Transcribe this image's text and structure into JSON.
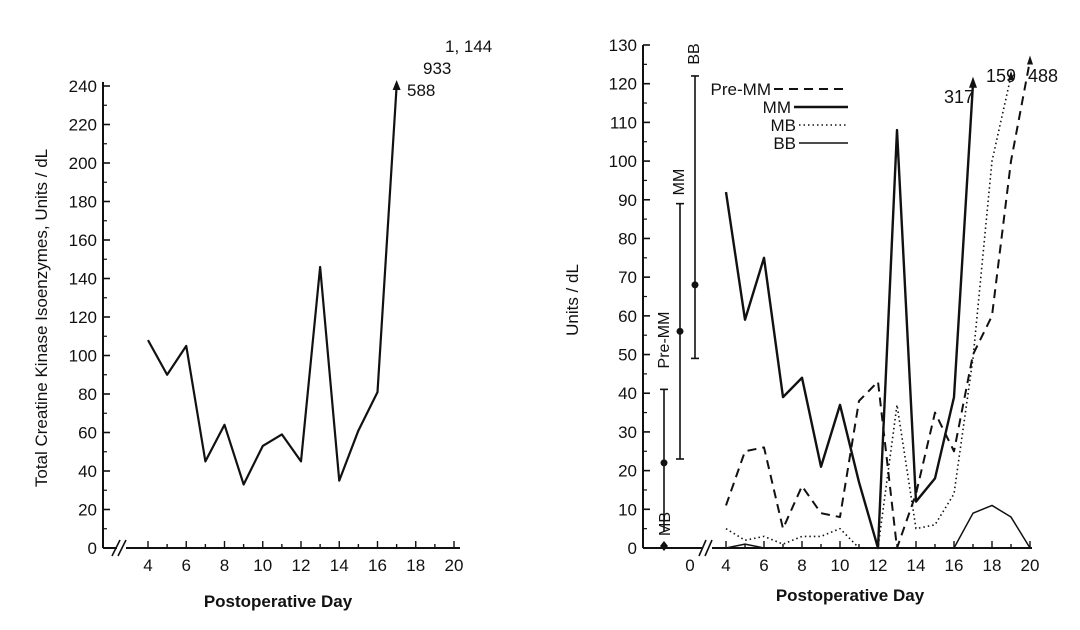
{
  "chart_data": [
    {
      "type": "line",
      "ylabel": "Total Creatine Kinase Isoenzymes, Units / dL",
      "xlabel": "Postoperative Day",
      "ylim": [
        0,
        240
      ],
      "xlim": [
        4,
        20
      ],
      "y_ticks": [
        "0",
        "20",
        "40",
        "60",
        "80",
        "100",
        "120",
        "140",
        "160",
        "180",
        "200",
        "220",
        "240"
      ],
      "x_ticks": [
        "4",
        "6",
        "8",
        "10",
        "12",
        "14",
        "16",
        "18",
        "20"
      ],
      "series": [
        {
          "x": [
            4,
            5,
            6,
            7,
            8,
            9,
            10,
            11,
            12,
            13,
            14,
            15,
            16,
            17
          ],
          "y": [
            108,
            90,
            105,
            45,
            64,
            33,
            53,
            59,
            45,
            146,
            35,
            61,
            81,
            240
          ]
        }
      ],
      "offscale_labels": [
        "1, 144",
        "933",
        "588"
      ]
    },
    {
      "type": "line",
      "ylabel": "Units / dL",
      "xlabel": "Postoperative Day",
      "ylim": [
        0,
        130
      ],
      "xlim": [
        4,
        20
      ],
      "y_ticks": [
        "0",
        "10",
        "20",
        "30",
        "40",
        "50",
        "60",
        "70",
        "80",
        "90",
        "100",
        "110",
        "120",
        "130"
      ],
      "x_ticks": [
        "4",
        "6",
        "8",
        "10",
        "12",
        "14",
        "16",
        "18",
        "20"
      ],
      "baseline_tick": "0",
      "legend": [
        "Pre-MM",
        "MM",
        "MB",
        "BB"
      ],
      "reference_ranges": [
        {
          "label": "MB",
          "low": 0,
          "mean": 22,
          "high": 41
        },
        {
          "label": "Pre-MM",
          "low": 23,
          "mean": 56,
          "high": 89
        },
        {
          "label": "MM",
          "low": 49,
          "mean": 68,
          "high": 122
        },
        {
          "label": "BB",
          "low": 49,
          "mean": 68,
          "high": 122
        }
      ],
      "series": [
        {
          "name": "Pre-MM",
          "style": "dashed",
          "x": [
            4,
            5,
            6,
            7,
            8,
            9,
            10,
            11,
            12,
            13,
            14,
            15,
            16,
            17,
            18,
            19,
            20
          ],
          "y": [
            11,
            25,
            26,
            5,
            16,
            9,
            8,
            38,
            43,
            0,
            14,
            35,
            25,
            50,
            60,
            100,
            126
          ]
        },
        {
          "name": "MM",
          "style": "solid",
          "x": [
            4,
            5,
            6,
            7,
            8,
            9,
            10,
            11,
            12,
            13,
            14,
            15,
            16,
            17
          ],
          "y": [
            92,
            59,
            75,
            39,
            44,
            21,
            37,
            17,
            0,
            108,
            12,
            18,
            39,
            120
          ]
        },
        {
          "name": "MB",
          "style": "dotted",
          "x": [
            4,
            5,
            6,
            7,
            8,
            9,
            10,
            11,
            12,
            13,
            14,
            15,
            16,
            17,
            18,
            19
          ],
          "y": [
            5,
            2,
            3,
            1,
            3,
            3,
            5,
            0,
            0,
            37,
            5,
            6,
            14,
            49,
            100,
            122
          ]
        },
        {
          "name": "BB",
          "style": "solid-thin",
          "x": [
            4,
            5,
            6,
            7,
            8,
            9,
            10,
            11,
            12,
            13,
            14,
            15,
            16,
            17,
            18,
            19,
            20
          ],
          "y": [
            0,
            1,
            0,
            0,
            0,
            0,
            0,
            0,
            0,
            0,
            0,
            0,
            0,
            9,
            11,
            8,
            0
          ]
        }
      ],
      "offscale_labels": [
        "317",
        "159",
        "488"
      ]
    }
  ]
}
